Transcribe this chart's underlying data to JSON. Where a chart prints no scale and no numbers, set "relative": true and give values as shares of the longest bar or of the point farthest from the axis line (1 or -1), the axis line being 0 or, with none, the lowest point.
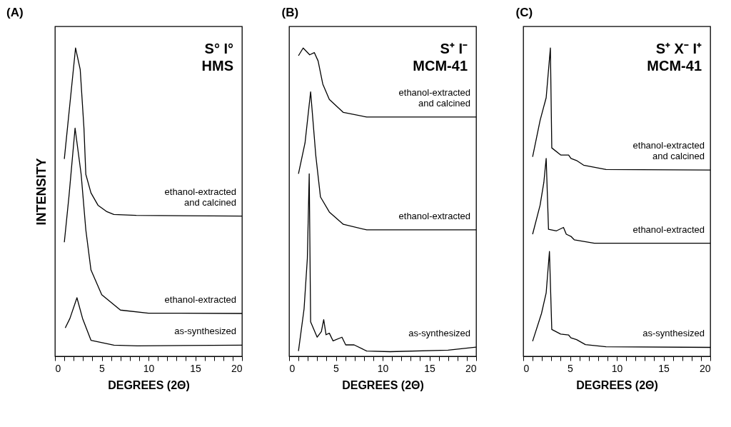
{
  "chart_data": [
    {
      "type": "line",
      "title": "(A)",
      "xlabel": "DEGREES (2Θ)",
      "ylabel": "INTENSITY",
      "relative": true,
      "tick_labels": "x",
      "grid": false,
      "legend": false,
      "xlim": [
        0,
        20
      ],
      "xticks": [
        0,
        {
          "value": 1,
          "label": null
        },
        {
          "value": 2,
          "label": null
        },
        {
          "value": 3,
          "label": null
        },
        {
          "value": 4,
          "label": null
        },
        5,
        {
          "value": 6,
          "label": null
        },
        {
          "value": 7,
          "label": null
        },
        {
          "value": 8,
          "label": null
        },
        {
          "value": 9,
          "label": null
        },
        10,
        {
          "value": 11,
          "label": null
        },
        {
          "value": 12,
          "label": null
        },
        {
          "value": 13,
          "label": null
        },
        {
          "value": 14,
          "label": null
        },
        15,
        {
          "value": 16,
          "label": null
        },
        {
          "value": 17,
          "label": null
        },
        {
          "value": 18,
          "label": null
        },
        {
          "value": 19,
          "label": null
        },
        20
      ],
      "annotations": [
        "S° I°",
        "HMS"
      ],
      "series": [
        {
          "name": "ethanol-extracted\nand calcined",
          "color": "#000000",
          "x": [
            1.0,
            1.6,
            2.2,
            2.7,
            3.1,
            3.3,
            3.85,
            4.6,
            5.5,
            6.3,
            8.7,
            20
          ],
          "values": [
            0.64,
            0.82,
            1.0,
            0.93,
            0.74,
            0.59,
            0.53,
            0.49,
            0.47,
            0.46,
            0.457,
            0.455
          ]
        },
        {
          "name": "ethanol-extracted",
          "color": "#000000",
          "x": [
            1.0,
            1.5,
            2.15,
            2.8,
            3.3,
            3.85,
            5.0,
            7.0,
            10,
            20
          ],
          "values": [
            0.37,
            0.52,
            0.74,
            0.59,
            0.41,
            0.28,
            0.2,
            0.15,
            0.14,
            0.139
          ]
        },
        {
          "name": "as-synthesized",
          "color": "#000000",
          "x": [
            1.1,
            1.6,
            2.35,
            2.95,
            3.85,
            6.3,
            8.8,
            20
          ],
          "values": [
            0.092,
            0.123,
            0.19,
            0.123,
            0.052,
            0.036,
            0.034,
            0.036
          ]
        }
      ]
    },
    {
      "type": "line",
      "title": "(B)",
      "xlabel": "DEGREES (2Θ)",
      "relative": true,
      "tick_labels": "x",
      "grid": false,
      "legend": false,
      "xlim": [
        0,
        20
      ],
      "xticks": [
        0,
        {
          "value": 1,
          "label": null
        },
        {
          "value": 2,
          "label": null
        },
        {
          "value": 3,
          "label": null
        },
        {
          "value": 4,
          "label": null
        },
        5,
        {
          "value": 6,
          "label": null
        },
        {
          "value": 7,
          "label": null
        },
        {
          "value": 8,
          "label": null
        },
        {
          "value": 9,
          "label": null
        },
        10,
        {
          "value": 11,
          "label": null
        },
        {
          "value": 12,
          "label": null
        },
        {
          "value": 13,
          "label": null
        },
        {
          "value": 14,
          "label": null
        },
        15,
        {
          "value": 16,
          "label": null
        },
        {
          "value": 17,
          "label": null
        },
        {
          "value": 18,
          "label": null
        },
        {
          "value": 19,
          "label": null
        },
        20
      ],
      "annotations": [
        "S⁺ I⁻",
        "MCM-41"
      ],
      "series": [
        {
          "name": "ethanol-extracted\nand calcined",
          "color": "#000000",
          "x": [
            1.0,
            1.5,
            2.2,
            2.7,
            3.1,
            3.6,
            4.3,
            5.8,
            8.3,
            20
          ],
          "values": [
            0.975,
            1.0,
            0.978,
            0.985,
            0.958,
            0.883,
            0.833,
            0.791,
            0.776,
            0.776
          ]
        },
        {
          "name": "ethanol-extracted",
          "color": "#000000",
          "x": [
            1.0,
            1.7,
            2.3,
            2.85,
            3.35,
            4.3,
            5.8,
            8.3,
            20
          ],
          "values": [
            0.592,
            0.692,
            0.858,
            0.652,
            0.517,
            0.468,
            0.428,
            0.41,
            0.41
          ]
        },
        {
          "name": "as-synthesized",
          "color": "#000000",
          "x": [
            1.0,
            1.6,
            1.95,
            2.15,
            2.3,
            3.0,
            3.45,
            3.7,
            3.95,
            4.3,
            4.7,
            5.65,
            6.05,
            6.95,
            8.3,
            10.8,
            17,
            20
          ],
          "values": [
            0.017,
            0.154,
            0.318,
            0.592,
            0.112,
            0.062,
            0.08,
            0.119,
            0.07,
            0.075,
            0.05,
            0.062,
            0.037,
            0.037,
            0.017,
            0.015,
            0.02,
            0.03
          ]
        }
      ]
    },
    {
      "type": "line",
      "title": "(C)",
      "xlabel": "DEGREES (2Θ)",
      "relative": true,
      "tick_labels": "x",
      "grid": false,
      "legend": false,
      "xlim": [
        0,
        20
      ],
      "xticks": [
        0,
        {
          "value": 1,
          "label": null
        },
        {
          "value": 2,
          "label": null
        },
        {
          "value": 3,
          "label": null
        },
        {
          "value": 4,
          "label": null
        },
        5,
        {
          "value": 6,
          "label": null
        },
        {
          "value": 7,
          "label": null
        },
        {
          "value": 8,
          "label": null
        },
        {
          "value": 9,
          "label": null
        },
        10,
        {
          "value": 11,
          "label": null
        },
        {
          "value": 12,
          "label": null
        },
        {
          "value": 13,
          "label": null
        },
        {
          "value": 14,
          "label": null
        },
        15,
        {
          "value": 16,
          "label": null
        },
        {
          "value": 17,
          "label": null
        },
        {
          "value": 18,
          "label": null
        },
        {
          "value": 19,
          "label": null
        },
        20
      ],
      "annotations": [
        "S⁺ X⁻ I⁺",
        "MCM-41"
      ],
      "series": [
        {
          "name": "ethanol-extracted\nand calcined",
          "color": "#000000",
          "x": [
            1.0,
            1.8,
            2.45,
            2.9,
            3.05,
            4.0,
            4.85,
            5.1,
            5.7,
            6.45,
            8.85,
            20
          ],
          "values": [
            0.647,
            0.765,
            0.839,
            1.0,
            0.676,
            0.653,
            0.653,
            0.642,
            0.635,
            0.62,
            0.606,
            0.604
          ]
        },
        {
          "name": "ethanol-extracted",
          "color": "#000000",
          "x": [
            1.0,
            1.8,
            2.2,
            2.45,
            2.7,
            3.55,
            4.3,
            4.6,
            5.1,
            5.45,
            7.6,
            20
          ],
          "values": [
            0.396,
            0.49,
            0.564,
            0.642,
            0.412,
            0.407,
            0.418,
            0.396,
            0.389,
            0.378,
            0.367,
            0.367
          ]
        },
        {
          "name": "as-synthesized",
          "color": "#000000",
          "x": [
            1.0,
            1.95,
            2.45,
            2.8,
            3.05,
            4.0,
            4.85,
            5.1,
            5.7,
            6.65,
            8.85,
            20
          ],
          "values": [
            0.049,
            0.139,
            0.206,
            0.34,
            0.087,
            0.072,
            0.069,
            0.06,
            0.054,
            0.038,
            0.031,
            0.029
          ]
        }
      ]
    }
  ]
}
